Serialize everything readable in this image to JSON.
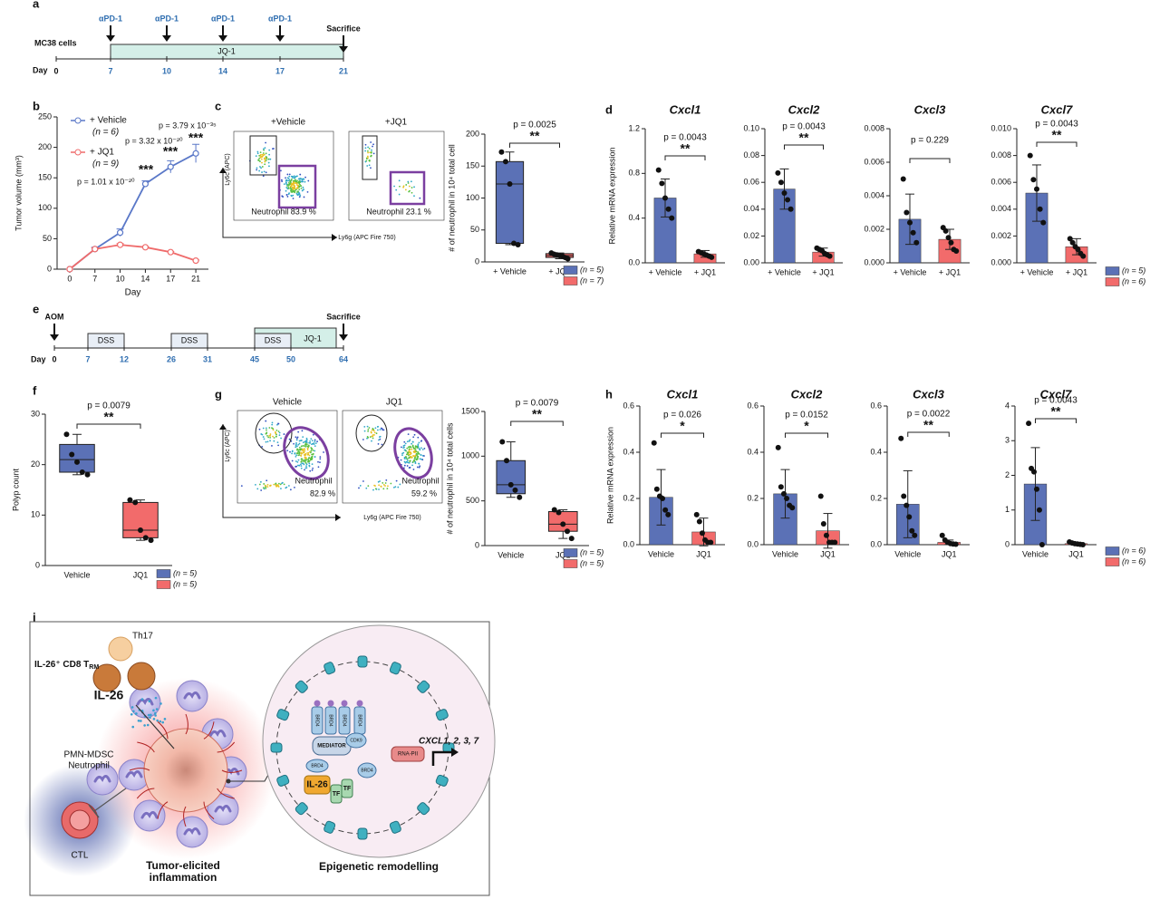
{
  "panel_labels": [
    "a",
    "b",
    "c",
    "d",
    "e",
    "f",
    "g",
    "h",
    "i"
  ],
  "timeline_a": {
    "start": "MC38 cells",
    "treatments": [
      "αPD-1",
      "αPD-1",
      "αPD-1",
      "αPD-1"
    ],
    "end": "Sacrifice",
    "drug": "JQ-1",
    "day_label": "Day",
    "days": [
      0,
      7,
      10,
      14,
      17,
      21
    ]
  },
  "timeline_e": {
    "start": "AOM",
    "end": "Sacrifice",
    "boxes": [
      "DSS",
      "DSS",
      "DSS",
      "JQ-1"
    ],
    "day_label": "Day",
    "days": [
      0,
      7,
      12,
      26,
      31,
      45,
      50,
      64
    ]
  },
  "flow_c": {
    "titles": [
      "+Vehicle",
      "+JQ1"
    ],
    "y_label": "Ly6c (APC)",
    "x_label": "Ly6g (APC Fire 750)",
    "gate_labels": [
      "Neutrophil  83.9 %",
      "Neutrophil  23.1 %"
    ]
  },
  "flow_g": {
    "titles": [
      "Vehicle",
      "JQ1"
    ],
    "y_label": "Ly6c (APC)",
    "x_label": "Ly6g (APC Fire 750)",
    "gate_names": [
      "Neutrophil",
      "Neutrophil"
    ],
    "gate_values": [
      "82.9 %",
      "59.2 %"
    ]
  },
  "chart_data": [
    {
      "type": "line",
      "x_label": "Day",
      "y_label": "Tumor volume (mm³)",
      "categories": [
        "0",
        "7",
        "10",
        "14",
        "17",
        "21"
      ],
      "ylim": [
        0,
        250
      ],
      "yticks": [
        0,
        50,
        100,
        150,
        200,
        250
      ],
      "series": [
        {
          "name": "+ Vehicle",
          "n_label": "(n = 6)",
          "color": "#5a78c8",
          "values": [
            0,
            33,
            60,
            140,
            168,
            190
          ],
          "errors": [
            0,
            3,
            6,
            5,
            10,
            15
          ]
        },
        {
          "name": "+ JQ1",
          "n_label": "(n = 9)",
          "color": "#ef6b6b",
          "values": [
            0,
            33,
            40,
            36,
            28,
            14
          ],
          "errors": [
            0,
            2,
            2,
            1,
            1,
            1
          ]
        }
      ],
      "annotations": [
        "p = 1.01 x 10⁻²⁰",
        "***",
        "p = 3.32 x 10⁻²⁰",
        "***",
        "p = 3.79 x 10⁻³⁵",
        "***"
      ]
    },
    {
      "type": "box",
      "y_label": "# of neutrophil in 10⁴ total cell",
      "categories": [
        "+ Vehicle",
        "+ JQ1"
      ],
      "colors": [
        "#5b71b6",
        "#f26b6b"
      ],
      "boxes": [
        {
          "min": 27,
          "q1": 29,
          "median": 122,
          "q3": 157,
          "max": 172
        },
        {
          "min": 5,
          "q1": 7,
          "median": 10,
          "q3": 13,
          "max": 14
        }
      ],
      "points": [
        [
          172,
          157,
          122,
          29,
          27
        ],
        [
          14,
          12,
          11,
          10,
          9,
          7,
          5
        ]
      ],
      "ylim": [
        0,
        200
      ],
      "yticks": [
        0,
        50,
        100,
        150,
        200
      ],
      "p_value": "p = 0.0025",
      "significance": "**",
      "legend": [
        {
          "label": "(n = 5)",
          "color": "#5b71b6"
        },
        {
          "label": "(n = 7)",
          "color": "#f26b6b"
        }
      ]
    },
    {
      "type": "bar",
      "title": "Cxcl1",
      "y_label": "Relative mRNA expression",
      "categories": [
        "+ Vehicle",
        "+ JQ1"
      ],
      "colors": [
        "#5b71b6",
        "#f26b6b"
      ],
      "values": [
        0.58,
        0.08
      ],
      "errors": [
        0.17,
        0.03
      ],
      "points": [
        [
          0.83,
          0.71,
          0.58,
          0.48,
          0.4
        ],
        [
          0.1,
          0.09,
          0.08,
          0.07,
          0.06,
          0.05
        ]
      ],
      "ylim": [
        0,
        1.2
      ],
      "yticks": [
        {
          "value": 0,
          "label": "0.0"
        },
        0.4,
        0.8,
        1.2
      ],
      "p_value": "p = 0.0043",
      "significance": "**"
    },
    {
      "type": "bar",
      "title": "Cxcl2",
      "categories": [
        "+ Vehicle",
        "+ JQ1"
      ],
      "colors": [
        "#5b71b6",
        "#f26b6b"
      ],
      "values": [
        0.055,
        0.008
      ],
      "errors": [
        0.015,
        0.003
      ],
      "points": [
        [
          0.067,
          0.06,
          0.052,
          0.047,
          0.04
        ],
        [
          0.011,
          0.01,
          0.009,
          0.007,
          0.006,
          0.005
        ]
      ],
      "ylim": [
        0,
        0.1
      ],
      "yticks": [
        {
          "value": 0,
          "label": "0.00"
        },
        0.02,
        0.04,
        0.06,
        0.08,
        {
          "value": 0.1,
          "label": "0.10"
        }
      ],
      "p_value": "p = 0.0043",
      "significance": "**"
    },
    {
      "type": "bar",
      "title": "Cxcl3",
      "categories": [
        "+ Vehicle",
        "+ JQ1"
      ],
      "colors": [
        "#5b71b6",
        "#f26b6b"
      ],
      "values": [
        0.0026,
        0.0014
      ],
      "errors": [
        0.0015,
        0.0006
      ],
      "points": [
        [
          0.005,
          0.003,
          0.0024,
          0.0018,
          0.0012
        ],
        [
          0.0021,
          0.0019,
          0.0015,
          0.0012,
          0.0008,
          0.0007
        ]
      ],
      "ylim": [
        0,
        0.008
      ],
      "yticks": [
        {
          "value": 0,
          "label": "0.000"
        },
        0.002,
        0.004,
        0.006,
        0.008
      ],
      "p_value": "p = 0.229"
    },
    {
      "type": "bar",
      "title": "Cxcl7",
      "categories": [
        "+ Vehicle",
        "+ JQ1"
      ],
      "colors": [
        "#5b71b6",
        "#f26b6b"
      ],
      "values": [
        0.0052,
        0.0012
      ],
      "errors": [
        0.0021,
        0.0006
      ],
      "points": [
        [
          0.008,
          0.0062,
          0.0055,
          0.004,
          0.003
        ],
        [
          0.0018,
          0.0015,
          0.0012,
          0.001,
          0.0007,
          0.0005
        ]
      ],
      "ylim": [
        0,
        0.01
      ],
      "yticks": [
        {
          "value": 0,
          "label": "0.000"
        },
        0.002,
        0.004,
        0.006,
        0.008,
        {
          "value": 0.01,
          "label": "0.010"
        }
      ],
      "p_value": "p = 0.0043",
      "significance": "**",
      "legend": [
        {
          "label": "(n = 5)",
          "color": "#5b71b6"
        },
        {
          "label": "(n = 6)",
          "color": "#f26b6b"
        }
      ]
    },
    {
      "type": "box",
      "y_label": "Polyp count",
      "categories": [
        "Vehicle",
        "JQ1"
      ],
      "colors": [
        "#5b71b6",
        "#f26b6b"
      ],
      "boxes": [
        {
          "min": 18,
          "q1": 18.5,
          "median": 21,
          "q3": 24,
          "max": 26
        },
        {
          "min": 5,
          "q1": 5.5,
          "median": 7,
          "q3": 12.5,
          "max": 13
        }
      ],
      "points": [
        [
          26,
          22,
          20.5,
          18.5,
          18
        ],
        [
          13,
          12.5,
          7,
          5.5,
          5
        ]
      ],
      "ylim": [
        0,
        30
      ],
      "yticks": [
        0,
        10,
        20,
        30
      ],
      "p_value": "p = 0.0079",
      "significance": "**",
      "legend": [
        {
          "label": "(n = 5)",
          "color": "#5b71b6"
        },
        {
          "label": "(n = 5)",
          "color": "#f26b6b"
        }
      ]
    },
    {
      "type": "box",
      "y_label": "# of neutrophil in 10⁴ total cells",
      "categories": [
        "Vehicle",
        "JQ1"
      ],
      "colors": [
        "#5b71b6",
        "#f26b6b"
      ],
      "boxes": [
        {
          "min": 540,
          "q1": 580,
          "median": 680,
          "q3": 950,
          "max": 1160
        },
        {
          "min": 80,
          "q1": 160,
          "median": 240,
          "q3": 380,
          "max": 400
        }
      ],
      "points": [
        [
          1160,
          950,
          680,
          620,
          540
        ],
        [
          400,
          370,
          240,
          160,
          80
        ]
      ],
      "ylim": [
        0,
        1500
      ],
      "yticks": [
        0,
        500,
        1000,
        1500
      ],
      "p_value": "p = 0.0079",
      "significance": "**",
      "legend": [
        {
          "label": "(n = 5)",
          "color": "#5b71b6"
        },
        {
          "label": "(n = 5)",
          "color": "#f26b6b"
        }
      ]
    },
    {
      "type": "bar",
      "title": "Cxcl1",
      "y_label": "Relative mRNA expression",
      "categories": [
        "Vehicle",
        "JQ1"
      ],
      "colors": [
        "#5b71b6",
        "#f26b6b"
      ],
      "values": [
        0.205,
        0.055
      ],
      "errors": [
        0.12,
        0.06
      ],
      "points": [
        [
          0.44,
          0.24,
          0.21,
          0.2,
          0.15,
          0.13
        ],
        [
          0.13,
          0.1,
          0.05,
          0.02,
          0.01,
          0.01
        ]
      ],
      "ylim": [
        0,
        0.6
      ],
      "yticks": [
        {
          "value": 0,
          "label": "0.0"
        },
        0.2,
        0.4,
        0.6
      ],
      "p_value": "p = 0.026",
      "significance": "*"
    },
    {
      "type": "bar",
      "title": "Cxcl2",
      "categories": [
        "Vehicle",
        "JQ1"
      ],
      "colors": [
        "#5b71b6",
        "#f26b6b"
      ],
      "values": [
        0.22,
        0.06
      ],
      "errors": [
        0.105,
        0.075
      ],
      "points": [
        [
          0.42,
          0.25,
          0.22,
          0.2,
          0.17,
          0.16
        ],
        [
          0.21,
          0.09,
          0.04,
          0.01,
          0.01,
          0.01
        ]
      ],
      "ylim": [
        0,
        0.6
      ],
      "yticks": [
        {
          "value": 0,
          "label": "0.0"
        },
        0.2,
        0.4,
        0.6
      ],
      "p_value": "p = 0.0152",
      "significance": "*"
    },
    {
      "type": "bar",
      "title": "Cxcl3",
      "categories": [
        "Vehicle",
        "JQ1"
      ],
      "colors": [
        "#5b71b6",
        "#f26b6b"
      ],
      "values": [
        0.175,
        0.01
      ],
      "errors": [
        0.145,
        0.01
      ],
      "points": [
        [
          0.46,
          0.21,
          0.17,
          0.12,
          0.06,
          0.04
        ],
        [
          0.04,
          0.02,
          0.01,
          0.005,
          0.003,
          0.002
        ]
      ],
      "ylim": [
        0,
        0.6
      ],
      "yticks": [
        {
          "value": 0,
          "label": "0.0"
        },
        0.2,
        0.4,
        0.6
      ],
      "p_value": "p = 0.0022",
      "significance": "**"
    },
    {
      "type": "bar",
      "title": "Cxcl7",
      "categories": [
        "Vehicle",
        "JQ1"
      ],
      "colors": [
        "#5b71b6",
        "#f26b6b"
      ],
      "values": [
        1.75,
        0.03
      ],
      "errors": [
        1.05,
        0.03
      ],
      "points": [
        [
          3.5,
          2.2,
          2.1,
          1.6,
          1.0,
          0.0
        ],
        [
          0.08,
          0.05,
          0.03,
          0.02,
          0.01,
          0.0
        ]
      ],
      "ylim": [
        0,
        4
      ],
      "yticks": [
        0,
        1,
        2,
        3,
        4
      ],
      "p_value": "p = 0.0043",
      "significance": "**",
      "legend": [
        {
          "label": "(n = 6)",
          "color": "#5b71b6"
        },
        {
          "label": "(n = 6)",
          "color": "#f26b6b"
        }
      ]
    }
  ],
  "diagram": {
    "th17": "Th17",
    "cd8": "IL-26⁺ CD8 T",
    "cd8_sub": "RM",
    "il26": "IL-26",
    "pmn": [
      "PMN-MDSC",
      "Neutrophil"
    ],
    "ctl": "CTL",
    "tumor": [
      "Tumor-elicited",
      "inflammation"
    ],
    "epi": "Epigenetic remodelling",
    "complex": {
      "brd4": [
        "BRD4",
        "BRD4",
        "BRD4",
        "BRD4",
        "BRD4",
        "BRD4"
      ],
      "mediator": "MEDIATOR",
      "cdk9": "CDK9",
      "rnapii": "RNA-PII",
      "genes": "CXCL1, 2, 3, 7",
      "il26": "IL-26",
      "tf": [
        "TF",
        "TF"
      ]
    }
  }
}
